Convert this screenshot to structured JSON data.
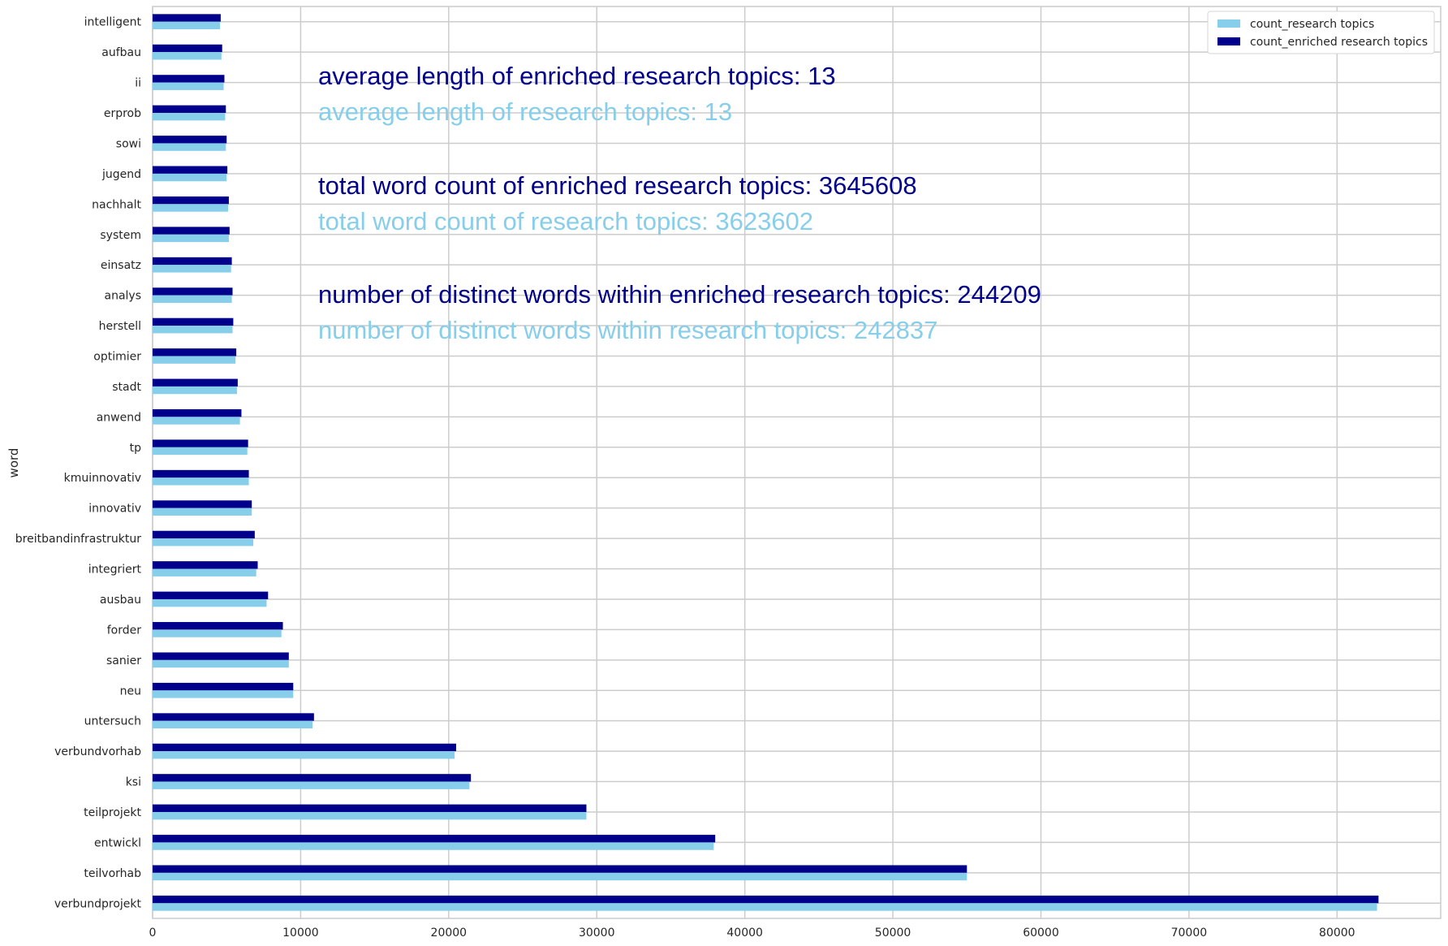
{
  "chart_data": {
    "type": "bar",
    "orientation": "horizontal",
    "ylabel": "word",
    "xlabel": "",
    "xlim": [
      0,
      87000
    ],
    "xticks": [
      0,
      10000,
      20000,
      30000,
      40000,
      50000,
      60000,
      70000,
      80000
    ],
    "grid": true,
    "legend_position": "top-right",
    "categories": [
      "verbundprojekt",
      "teilvorhab",
      "entwickl",
      "teilprojekt",
      "ksi",
      "verbundvorhab",
      "untersuch",
      "neu",
      "sanier",
      "forder",
      "ausbau",
      "integriert",
      "breitbandinfrastruktur",
      "innovativ",
      "kmuinnovativ",
      "tp",
      "anwend",
      "stadt",
      "optimier",
      "herstell",
      "analys",
      "einsatz",
      "system",
      "nachhalt",
      "jugend",
      "sowi",
      "erprob",
      "ii",
      "aufbau",
      "intelligent"
    ],
    "series": [
      {
        "name": "count_research topics",
        "color": "#87ceeb",
        "values": [
          82700,
          55000,
          37900,
          29300,
          21400,
          20400,
          10800,
          9500,
          9200,
          8700,
          7700,
          7000,
          6800,
          6700,
          6500,
          6400,
          5900,
          5700,
          5600,
          5400,
          5350,
          5300,
          5150,
          5100,
          5000,
          4950,
          4900,
          4800,
          4650,
          4550
        ]
      },
      {
        "name": "count_enriched research topics",
        "color": "#00008b",
        "values": [
          82800,
          55000,
          38000,
          29300,
          21500,
          20500,
          10900,
          9500,
          9200,
          8800,
          7800,
          7100,
          6900,
          6700,
          6500,
          6450,
          6000,
          5750,
          5650,
          5450,
          5400,
          5350,
          5200,
          5150,
          5050,
          5000,
          4950,
          4850,
          4700,
          4600
        ]
      }
    ],
    "annotations": [
      {
        "text": "average length of enriched research topics: 13",
        "color": "#00008b"
      },
      {
        "text": "average length of research topics: 13",
        "color": "#87ceeb"
      },
      {
        "text": "total word count of enriched research topics: 3645608",
        "color": "#00008b"
      },
      {
        "text": "total word count of research topics: 3623602",
        "color": "#87ceeb"
      },
      {
        "text": "number of distinct words within enriched research topics: 244209",
        "color": "#00008b"
      },
      {
        "text": "number of distinct words within research topics: 242837",
        "color": "#87ceeb"
      }
    ]
  }
}
